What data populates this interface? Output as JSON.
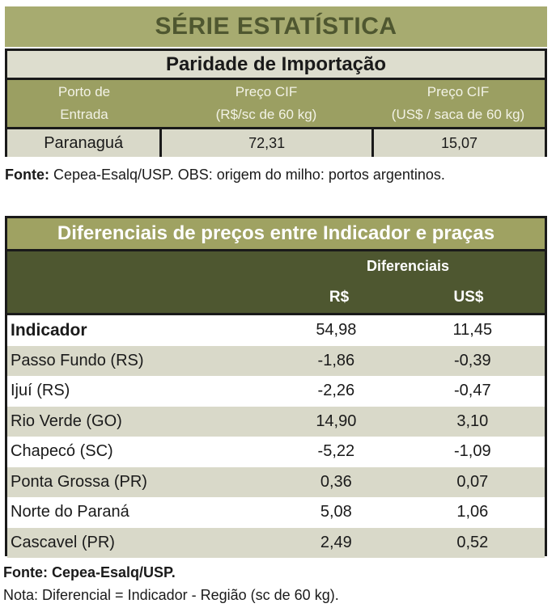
{
  "banner": {
    "title": "SÉRIE ESTATÍSTICA"
  },
  "import_parity": {
    "title": "Paridade de Importação",
    "col1": [
      "Porto de",
      "Entrada"
    ],
    "col2": [
      "Preço CIF",
      "(R$/sc de 60 kg)"
    ],
    "col3": [
      "Preço CIF",
      "(US$ / saca de 60 kg)"
    ],
    "row": {
      "port": "Paranaguá",
      "brl": "72,31",
      "usd": "15,07"
    }
  },
  "note1": {
    "label": "Fonte:",
    "text": " Cepea-Esalq/USP. OBS: origem do milho: portos argentinos."
  },
  "differentials": {
    "title": "Diferenciais de preços entre Indicador e praças",
    "group_header": "Diferenciais",
    "col_brl": "R$",
    "col_usd": "US$",
    "rows": [
      {
        "name": "Indicador",
        "brl": "54,98",
        "usd": "11,45"
      },
      {
        "name": "Passo Fundo (RS)",
        "brl": "-1,86",
        "usd": "-0,39"
      },
      {
        "name": "Ijuí (RS)",
        "brl": "-2,26",
        "usd": "-0,47"
      },
      {
        "name": "Rio Verde (GO)",
        "brl": "14,90",
        "usd": "3,10"
      },
      {
        "name": "Chapecó (SC)",
        "brl": "-5,22",
        "usd": "-1,09"
      },
      {
        "name": "Ponta Grossa (PR)",
        "brl": "0,36",
        "usd": "0,07"
      },
      {
        "name": "Norte do Paraná",
        "brl": "5,08",
        "usd": "1,06"
      },
      {
        "name": "Cascavel (PR)",
        "brl": "2,49",
        "usd": "0,52"
      }
    ]
  },
  "note2": {
    "source": "Fonte: Cepea-Esalq/USP.",
    "nota": "Nota: Diferencial = Indicador - Região (sc de 60 kg)."
  },
  "colors": {
    "banner_bg": "#a7ab70",
    "banner_text": "#4f5730",
    "olive_header": "#9fa262",
    "dark_olive": "#4e5730",
    "row_alt": "#d9d9c9"
  }
}
